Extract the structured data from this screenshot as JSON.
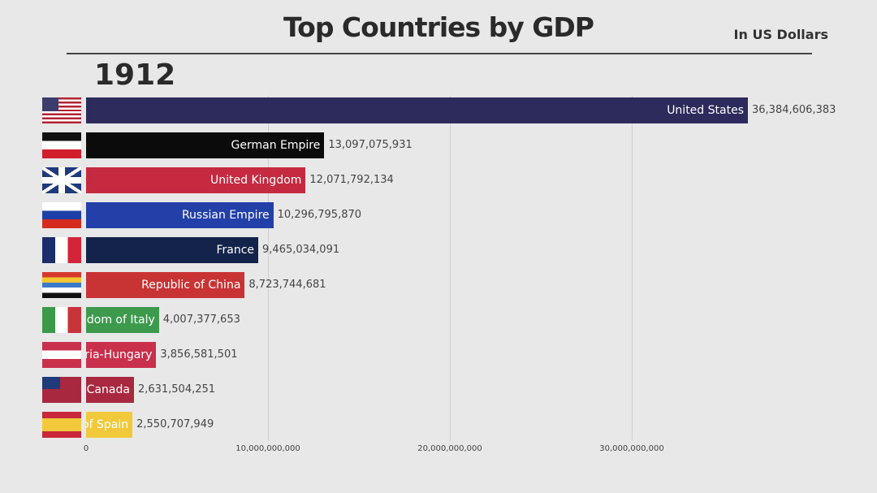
{
  "chart_data": {
    "type": "bar",
    "title": "Top Countries by GDP",
    "subtitle": "In US Dollars",
    "year": "1912",
    "xlim": [
      0,
      36384606383
    ],
    "ticks": [
      0,
      10000000000,
      20000000000,
      30000000000
    ],
    "tick_labels": [
      "0",
      "10,000,000,000",
      "20,000,000,000",
      "30,000,000,000"
    ],
    "grid": true,
    "categories": [
      "United States",
      "German Empire",
      "United Kingdom",
      "Russian Empire",
      "France",
      "Republic of China",
      "Kingdom of Italy",
      "Austria-Hungary",
      "Canada",
      "Kingdom of Spain"
    ],
    "values": [
      36384606383,
      13097075931,
      12071792134,
      10296795870,
      9465034091,
      8723744681,
      4007377653,
      3856581501,
      2631504251,
      2550707949
    ],
    "value_labels": [
      "36,384,606,383",
      "13,097,075,931",
      "12,071,792,134",
      "10,296,795,870",
      "9,465,034,091",
      "8,723,744,681",
      "4,007,377,653",
      "3,856,581,501",
      "2,631,504,251",
      "2,550,707,949"
    ],
    "colors": [
      "#2d2a5c",
      "#0b0b0b",
      "#c52a40",
      "#2340a8",
      "#14234a",
      "#c83434",
      "#3d9a4c",
      "#c8304c",
      "#a8283f",
      "#f2c93a"
    ],
    "flags": [
      "us-flag",
      "german-empire-flag",
      "uk-flag",
      "russian-empire-flag",
      "france-flag",
      "republic-of-china-flag",
      "italy-flag",
      "austria-hungary-flag",
      "canada-flag",
      "spain-flag"
    ]
  }
}
